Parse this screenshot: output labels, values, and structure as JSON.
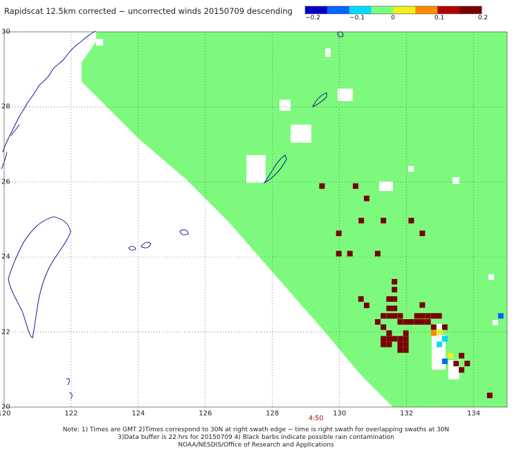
{
  "title": "Rapidscat 12.5km corrected − uncorrected winds 20150709 descending",
  "colorbar": {
    "ticks": [
      "−0.2",
      "−0.1",
      "0",
      "0.1",
      "0.2"
    ],
    "range": [
      -0.2,
      0.2
    ],
    "palette": [
      "#0000c8",
      "#0064ff",
      "#00dcff",
      "#7dff7d",
      "#f0f01e",
      "#ff8c00",
      "#b40000",
      "#780000"
    ]
  },
  "map": {
    "lon_range": [
      120,
      135
    ],
    "lat_range": [
      20,
      30
    ],
    "lon_ticks": [
      "120",
      "122",
      "124",
      "126",
      "128",
      "130",
      "132",
      "134"
    ],
    "lat_ticks": [
      "20",
      "22",
      "24",
      "26",
      "28",
      "30"
    ],
    "swath_color": "#7dfa7d",
    "coast_color": "#00008b",
    "grid_style": "dotted",
    "time_label": "4:50",
    "time_label_lon": 129.3,
    "hotspots_dark_red": [
      [
        129.48,
        25.89
      ],
      [
        130.48,
        25.89
      ],
      [
        130.81,
        25.56
      ],
      [
        130.65,
        24.97
      ],
      [
        131.31,
        24.97
      ],
      [
        132.14,
        24.97
      ],
      [
        129.98,
        24.63
      ],
      [
        132.47,
        24.63
      ],
      [
        129.98,
        24.09
      ],
      [
        130.31,
        24.09
      ],
      [
        131.14,
        24.09
      ],
      [
        131.64,
        23.34
      ],
      [
        131.64,
        23.13
      ],
      [
        131.48,
        22.88
      ],
      [
        131.64,
        22.88
      ],
      [
        130.64,
        22.88
      ],
      [
        130.81,
        22.71
      ],
      [
        132.47,
        22.72
      ],
      [
        131.48,
        22.63
      ],
      [
        131.64,
        22.63
      ],
      [
        131.31,
        22.43
      ],
      [
        131.48,
        22.43
      ],
      [
        131.64,
        22.43
      ],
      [
        131.81,
        22.43
      ],
      [
        132.31,
        22.43
      ],
      [
        132.47,
        22.43
      ],
      [
        132.64,
        22.43
      ],
      [
        132.81,
        22.43
      ],
      [
        132.97,
        22.43
      ],
      [
        131.98,
        22.27
      ],
      [
        131.14,
        22.27
      ],
      [
        132.14,
        22.27
      ],
      [
        132.31,
        22.27
      ],
      [
        132.47,
        22.27
      ],
      [
        132.64,
        22.27
      ],
      [
        131.81,
        22.27
      ],
      [
        131.31,
        22.13
      ],
      [
        132.81,
        22.13
      ],
      [
        133.14,
        22.13
      ],
      [
        131.48,
        21.97
      ],
      [
        131.98,
        21.97
      ],
      [
        131.31,
        21.82
      ],
      [
        131.48,
        21.82
      ],
      [
        131.64,
        21.82
      ],
      [
        131.81,
        21.82
      ],
      [
        131.98,
        21.82
      ],
      [
        133.14,
        21.82
      ],
      [
        131.31,
        21.67
      ],
      [
        131.48,
        21.67
      ],
      [
        131.81,
        21.67
      ],
      [
        131.98,
        21.67
      ],
      [
        131.81,
        21.52
      ],
      [
        131.98,
        21.52
      ],
      [
        133.64,
        21.37
      ],
      [
        133.48,
        21.16
      ],
      [
        133.81,
        21.16
      ],
      [
        133.64,
        20.99
      ],
      [
        134.48,
        20.31
      ]
    ],
    "hotspots_other": [
      [
        132.98,
        22.0,
        "#f0f01e"
      ],
      [
        132.81,
        21.97,
        "#ff8c00"
      ],
      [
        133.14,
        21.82,
        "#00dcff"
      ],
      [
        132.98,
        21.67,
        "#00dcff"
      ],
      [
        133.31,
        21.37,
        "#f0f01e"
      ],
      [
        133.14,
        21.22,
        "#0064ff"
      ],
      [
        134.81,
        22.43,
        "#0064ff"
      ]
    ]
  },
  "notes": [
    "Note: 1) Times are GMT 2)Times correspond to 30N at right swath edge − time is right swath for overlapping swaths at 30N",
    "3)Data buffer is 22 hrs for 20150709 4) Black barbs indicate possible rain contamination",
    "NOAA/NESDIS/Office of Research and Applications"
  ]
}
